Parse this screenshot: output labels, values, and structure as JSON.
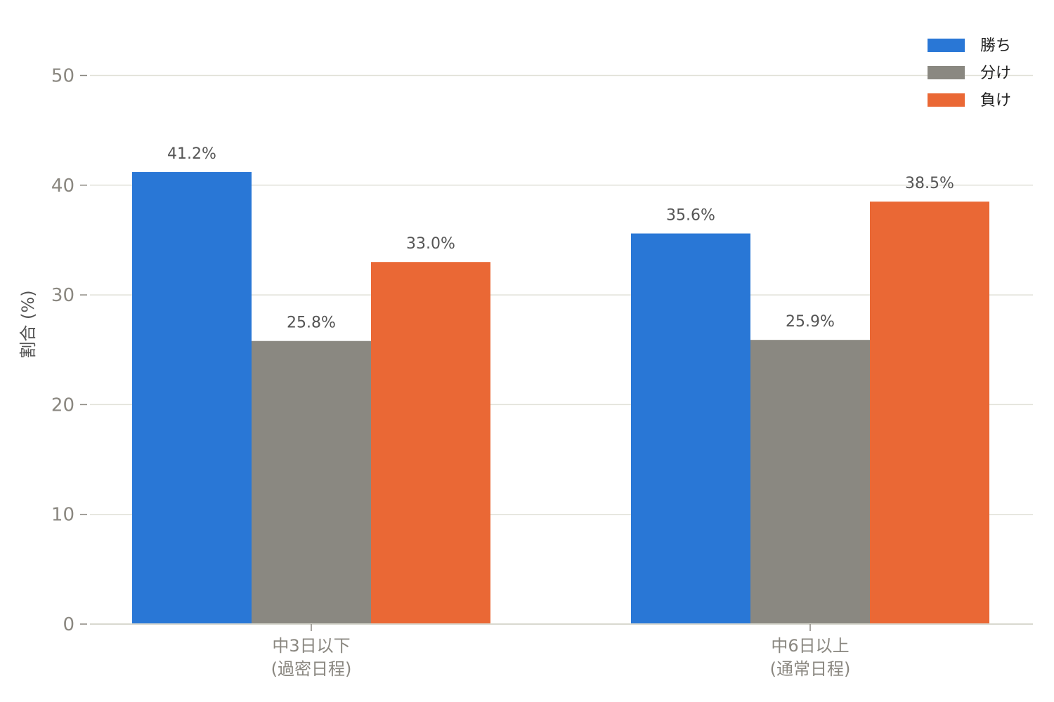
{
  "chart_data": {
    "type": "bar",
    "categories": [
      "中3日以下\n(過密日程)",
      "中6日以上\n(通常日程)"
    ],
    "series": [
      {
        "name": "勝ち",
        "values": [
          41.2,
          35.6
        ],
        "labels": [
          "41.2%",
          "35.6%"
        ],
        "color": "#2977d6"
      },
      {
        "name": "分け",
        "values": [
          25.8,
          25.9
        ],
        "labels": [
          "25.8%",
          "25.9%"
        ],
        "color": "#8a8881"
      },
      {
        "name": "負け",
        "values": [
          33.0,
          38.5
        ],
        "labels": [
          "33.0%",
          "38.5%"
        ],
        "color": "#ea6835"
      }
    ],
    "title": "",
    "xlabel": "",
    "ylabel": "割合 (%)",
    "ylim": [
      0,
      55
    ],
    "yticks": [
      0,
      10,
      20,
      30,
      40,
      50
    ],
    "grid": "horizontal",
    "legend_position": "top-right"
  }
}
